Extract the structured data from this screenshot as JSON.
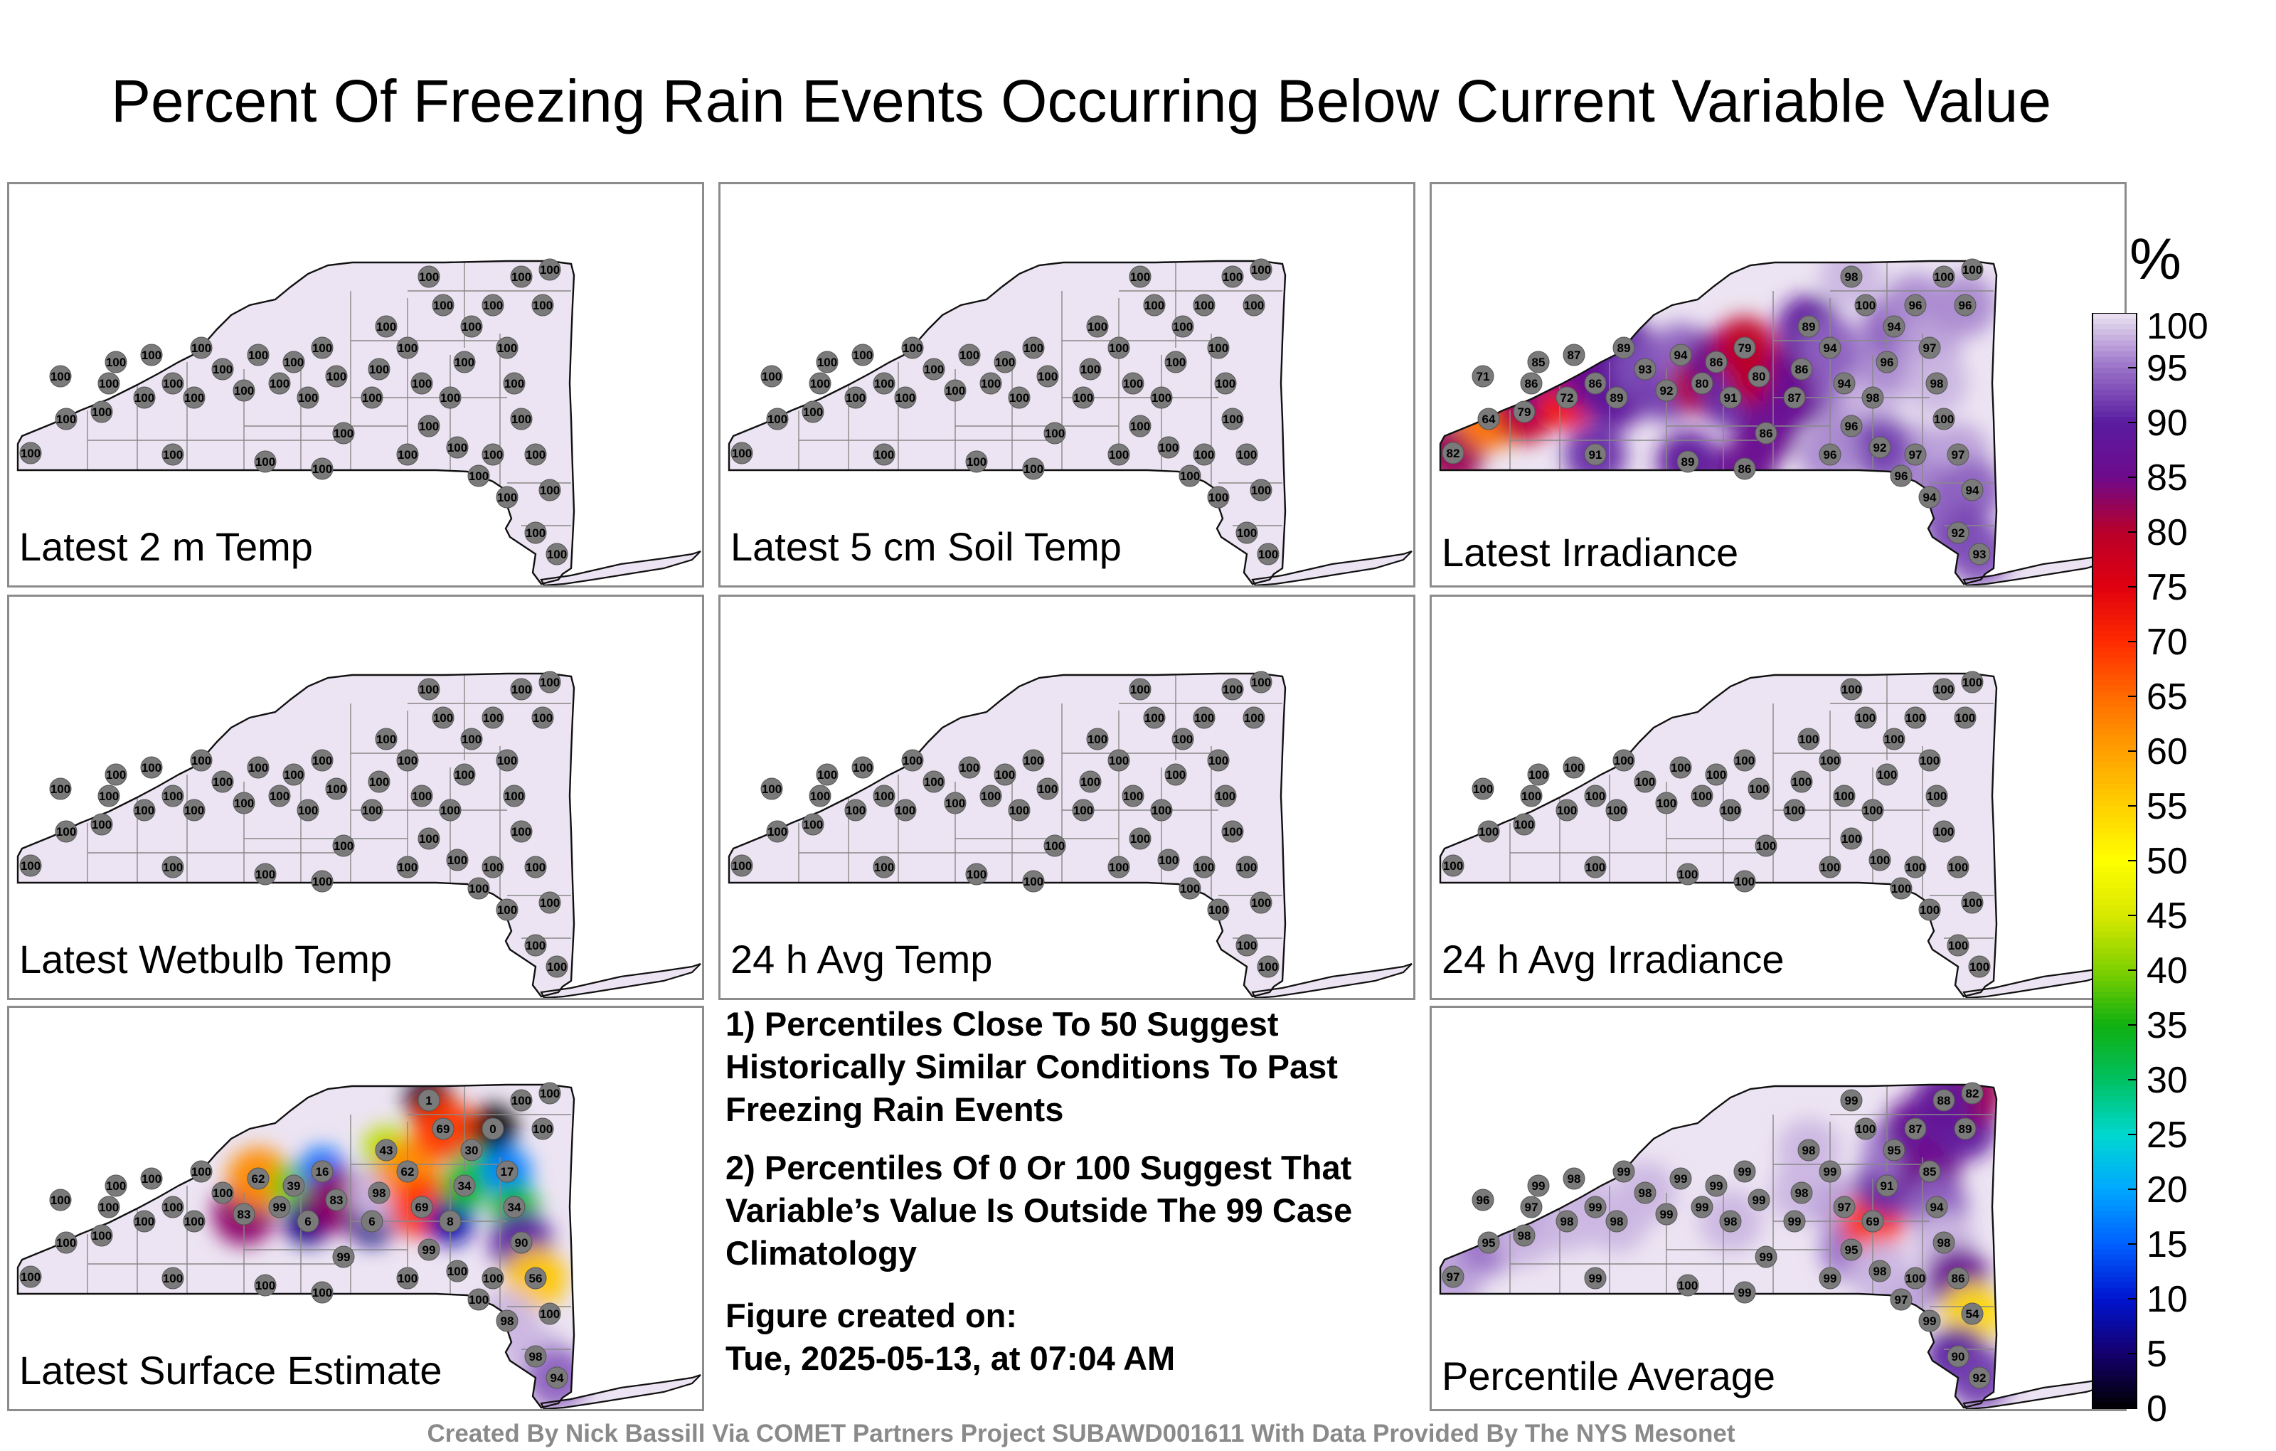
{
  "title": "Percent Of Freezing Rain Events Occurring Below Current Variable Value",
  "unit": "%",
  "credit": "Created By Nick Bassill Via COMET Partners Project SUBAWD001611 With Data Provided By The NYS Mesonet",
  "notes": {
    "note1": "1) Percentiles Close To 50 Suggest Historically Similar Conditions To Past Freezing Rain Events",
    "note2": "2) Percentiles Of 0 Or 100 Suggest That Variable’s Value Is Outside The 99 Case Climatology",
    "created_label": "Figure created on:",
    "created_value": "Tue, 2025-05-13, at 07:04 AM"
  },
  "colorbar": {
    "ticks": [
      0,
      5,
      10,
      15,
      20,
      25,
      30,
      35,
      40,
      45,
      50,
      55,
      60,
      65,
      70,
      75,
      80,
      85,
      90,
      95,
      100
    ],
    "stops": [
      "#000000",
      "#15006e",
      "#0015d0",
      "#0060ff",
      "#00a8ff",
      "#00d8d0",
      "#00c060",
      "#10b010",
      "#80d000",
      "#d8e800",
      "#ffff00",
      "#ffd000",
      "#ffa000",
      "#ff6a00",
      "#ff2a00",
      "#e00010",
      "#b8002a",
      "#6e0a8c",
      "#5a1ca0",
      "#9a72c8",
      "#ece4f2"
    ]
  },
  "panels": [
    {
      "label": "Latest 2 m Temp",
      "shading": "uniform",
      "stations": [
        100,
        100,
        100,
        100,
        100,
        100,
        100,
        100,
        100,
        100,
        100,
        100,
        100,
        100,
        100,
        100,
        100,
        100,
        100,
        100,
        100,
        100,
        100,
        100,
        100,
        100,
        100,
        100,
        100,
        100,
        100,
        100,
        100,
        100,
        100,
        100,
        100,
        100,
        100,
        100,
        100,
        100,
        100,
        100,
        100,
        100,
        100,
        100,
        100,
        100
      ]
    },
    {
      "label": "Latest 5 cm Soil Temp",
      "shading": "uniform",
      "stations": [
        100,
        100,
        100,
        100,
        100,
        100,
        100,
        100,
        100,
        100,
        100,
        100,
        100,
        100,
        100,
        100,
        100,
        100,
        100,
        100,
        100,
        100,
        100,
        100,
        100,
        100,
        100,
        100,
        100,
        100,
        100,
        100,
        100,
        100,
        100,
        100,
        100,
        100,
        100,
        100,
        100,
        100,
        100,
        100,
        100,
        100,
        100,
        100,
        100,
        100
      ]
    },
    {
      "label": "Latest Irradiance",
      "shading": "irradiance",
      "stations": [
        82,
        64,
        71,
        79,
        86,
        72,
        85,
        87,
        86,
        89,
        89,
        93,
        92,
        94,
        80,
        86,
        91,
        79,
        80,
        86,
        87,
        86,
        89,
        94,
        94,
        96,
        98,
        96,
        94,
        96,
        97,
        98,
        100,
        97,
        94,
        92,
        93,
        96,
        100,
        100,
        98,
        100,
        97,
        94,
        96,
        92,
        96,
        86,
        89,
        91
      ]
    },
    {
      "label": "Latest Wetbulb Temp",
      "shading": "uniform",
      "stations": [
        100,
        100,
        100,
        100,
        100,
        100,
        100,
        100,
        100,
        100,
        100,
        100,
        100,
        100,
        100,
        100,
        100,
        100,
        100,
        100,
        100,
        100,
        100,
        100,
        100,
        100,
        100,
        100,
        100,
        100,
        100,
        100,
        100,
        100,
        100,
        100,
        100,
        100,
        100,
        100,
        100,
        100,
        100,
        100,
        100,
        100,
        100,
        100,
        100,
        100
      ]
    },
    {
      "label": "24 h Avg Temp",
      "shading": "uniform",
      "stations": [
        100,
        100,
        100,
        100,
        100,
        100,
        100,
        100,
        100,
        100,
        100,
        100,
        100,
        100,
        100,
        100,
        100,
        100,
        100,
        100,
        100,
        100,
        100,
        100,
        100,
        100,
        100,
        100,
        100,
        100,
        100,
        100,
        100,
        100,
        100,
        100,
        100,
        100,
        100,
        100,
        100,
        100,
        100,
        100,
        100,
        100,
        100,
        100,
        100,
        100
      ]
    },
    {
      "label": "24 h Avg Irradiance",
      "shading": "uniform",
      "stations": [
        100,
        100,
        100,
        100,
        100,
        100,
        100,
        100,
        100,
        100,
        100,
        100,
        100,
        100,
        100,
        100,
        100,
        100,
        100,
        100,
        100,
        100,
        100,
        100,
        100,
        100,
        100,
        100,
        100,
        100,
        100,
        100,
        100,
        100,
        100,
        100,
        100,
        100,
        100,
        100,
        100,
        100,
        100,
        100,
        100,
        100,
        100,
        100,
        100,
        100
      ]
    },
    {
      "label": "Latest Surface Estimate",
      "shading": "surface",
      "stations": [
        100,
        100,
        100,
        100,
        100,
        100,
        100,
        100,
        100,
        100,
        100,
        100,
        83,
        62,
        99,
        39,
        6,
        16,
        83,
        99,
        6,
        98,
        43,
        62,
        69,
        99,
        8,
        34,
        30,
        0,
        17,
        34,
        90,
        56,
        100,
        98,
        94,
        100,
        100,
        100,
        1,
        69,
        100,
        98,
        100,
        100,
        100,
        100,
        100,
        100
      ]
    },
    {
      "label": "Percentile Average",
      "shading": "average",
      "stations": [
        97,
        95,
        96,
        98,
        97,
        98,
        99,
        98,
        99,
        98,
        99,
        98,
        99,
        99,
        99,
        99,
        98,
        99,
        99,
        99,
        99,
        98,
        98,
        99,
        97,
        95,
        69,
        91,
        95,
        87,
        85,
        94,
        98,
        86,
        54,
        90,
        92,
        89,
        82,
        88,
        99,
        100,
        100,
        99,
        97,
        98,
        99,
        99,
        100,
        99
      ]
    }
  ]
}
